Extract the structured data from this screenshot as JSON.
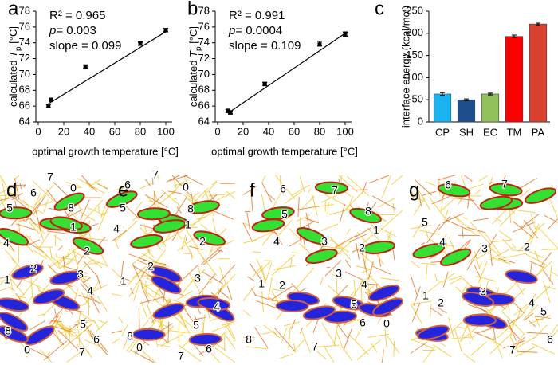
{
  "chart_data": [
    {
      "type": "scatter",
      "panel_label": "a",
      "x": [
        8,
        10,
        37,
        80,
        100
      ],
      "values": [
        66.0,
        66.8,
        71.0,
        73.9,
        75.6
      ],
      "errors": [
        0.2,
        0.2,
        0.2,
        0.2,
        0.2
      ],
      "fit": {
        "x": [
          8,
          100
        ],
        "y": [
          66.3,
          75.4
        ]
      },
      "stats": [
        {
          "text": "R² = 0.965"
        },
        {
          "italic": "p",
          "text": "= 0.003"
        },
        {
          "text": "slope = 0.099"
        }
      ],
      "xlabel": "optimal growth temperature [°C]",
      "ylabel": [
        "calculated ",
        "T",
        "p",
        " [°C]"
      ],
      "xlim": [
        0,
        105
      ],
      "xticks": [
        0,
        20,
        40,
        60,
        80,
        100
      ],
      "ylim": [
        64,
        78
      ],
      "yticks": [
        64,
        66,
        68,
        70,
        72,
        74,
        76,
        78
      ],
      "color": "#000000"
    },
    {
      "type": "scatter",
      "panel_label": "b",
      "x": [
        8,
        10,
        37,
        80,
        100
      ],
      "values": [
        65.4,
        65.2,
        68.8,
        73.9,
        75.1
      ],
      "errors": [
        0.2,
        0.2,
        0.2,
        0.3,
        0.25
      ],
      "fit": {
        "x": [
          8,
          100
        ],
        "y": [
          65.1,
          75.2
        ]
      },
      "stats": [
        {
          "text": "R² = 0.991"
        },
        {
          "italic": "p",
          "text": "= 0.0004"
        },
        {
          "text": "slope = 0.109"
        }
      ],
      "xlabel": "optimal growth temperature [°C]",
      "ylabel": [
        "calculated ",
        "T",
        "p",
        " [°C]"
      ],
      "xlim": [
        0,
        105
      ],
      "xticks": [
        0,
        20,
        40,
        60,
        80,
        100
      ],
      "ylim": [
        64,
        78
      ],
      "yticks": [
        64,
        66,
        68,
        70,
        72,
        74,
        76,
        78
      ],
      "color": "#000000"
    },
    {
      "type": "bar",
      "panel_label": "c",
      "categories": [
        "CP",
        "SH",
        "EC",
        "TM",
        "PA"
      ],
      "values": [
        -63,
        -50,
        -63,
        -193,
        -221
      ],
      "errors": [
        3,
        2,
        2,
        3,
        2
      ],
      "colors": [
        "#1ab2ef",
        "#1f4e8c",
        "#92c05a",
        "#ff0000",
        "#d9402e"
      ],
      "ylabel": "interface energy (kcal/mol)",
      "ylim": [
        0,
        -250
      ],
      "yticks": [
        0,
        -50,
        -100,
        -150,
        -200,
        -250
      ]
    }
  ],
  "panels": [
    {
      "label": "d",
      "helix_labels": [
        "7",
        "0",
        "6",
        "8",
        "5",
        "1",
        "4",
        "2",
        "2",
        "3",
        "1",
        "4",
        "5",
        "6",
        "7",
        "8",
        "0"
      ]
    },
    {
      "label": "e",
      "helix_labels": [
        "7",
        "6",
        "0",
        "8",
        "5",
        "1",
        "4",
        "2",
        "2",
        "3",
        "1",
        "4",
        "5",
        "6",
        "7",
        "8",
        "0"
      ]
    },
    {
      "label": "f",
      "helix_labels": [
        "6",
        "7",
        "8",
        "5",
        "1",
        "4",
        "2",
        "3",
        "1",
        "2",
        "3",
        "4",
        "5",
        "6",
        "0",
        "8",
        "7"
      ]
    },
    {
      "label": "g",
      "helix_labels": [
        "6",
        "7",
        "5",
        "4",
        "3",
        "2",
        "1",
        "2",
        "3",
        "4",
        "5",
        "7",
        "6"
      ]
    }
  ]
}
